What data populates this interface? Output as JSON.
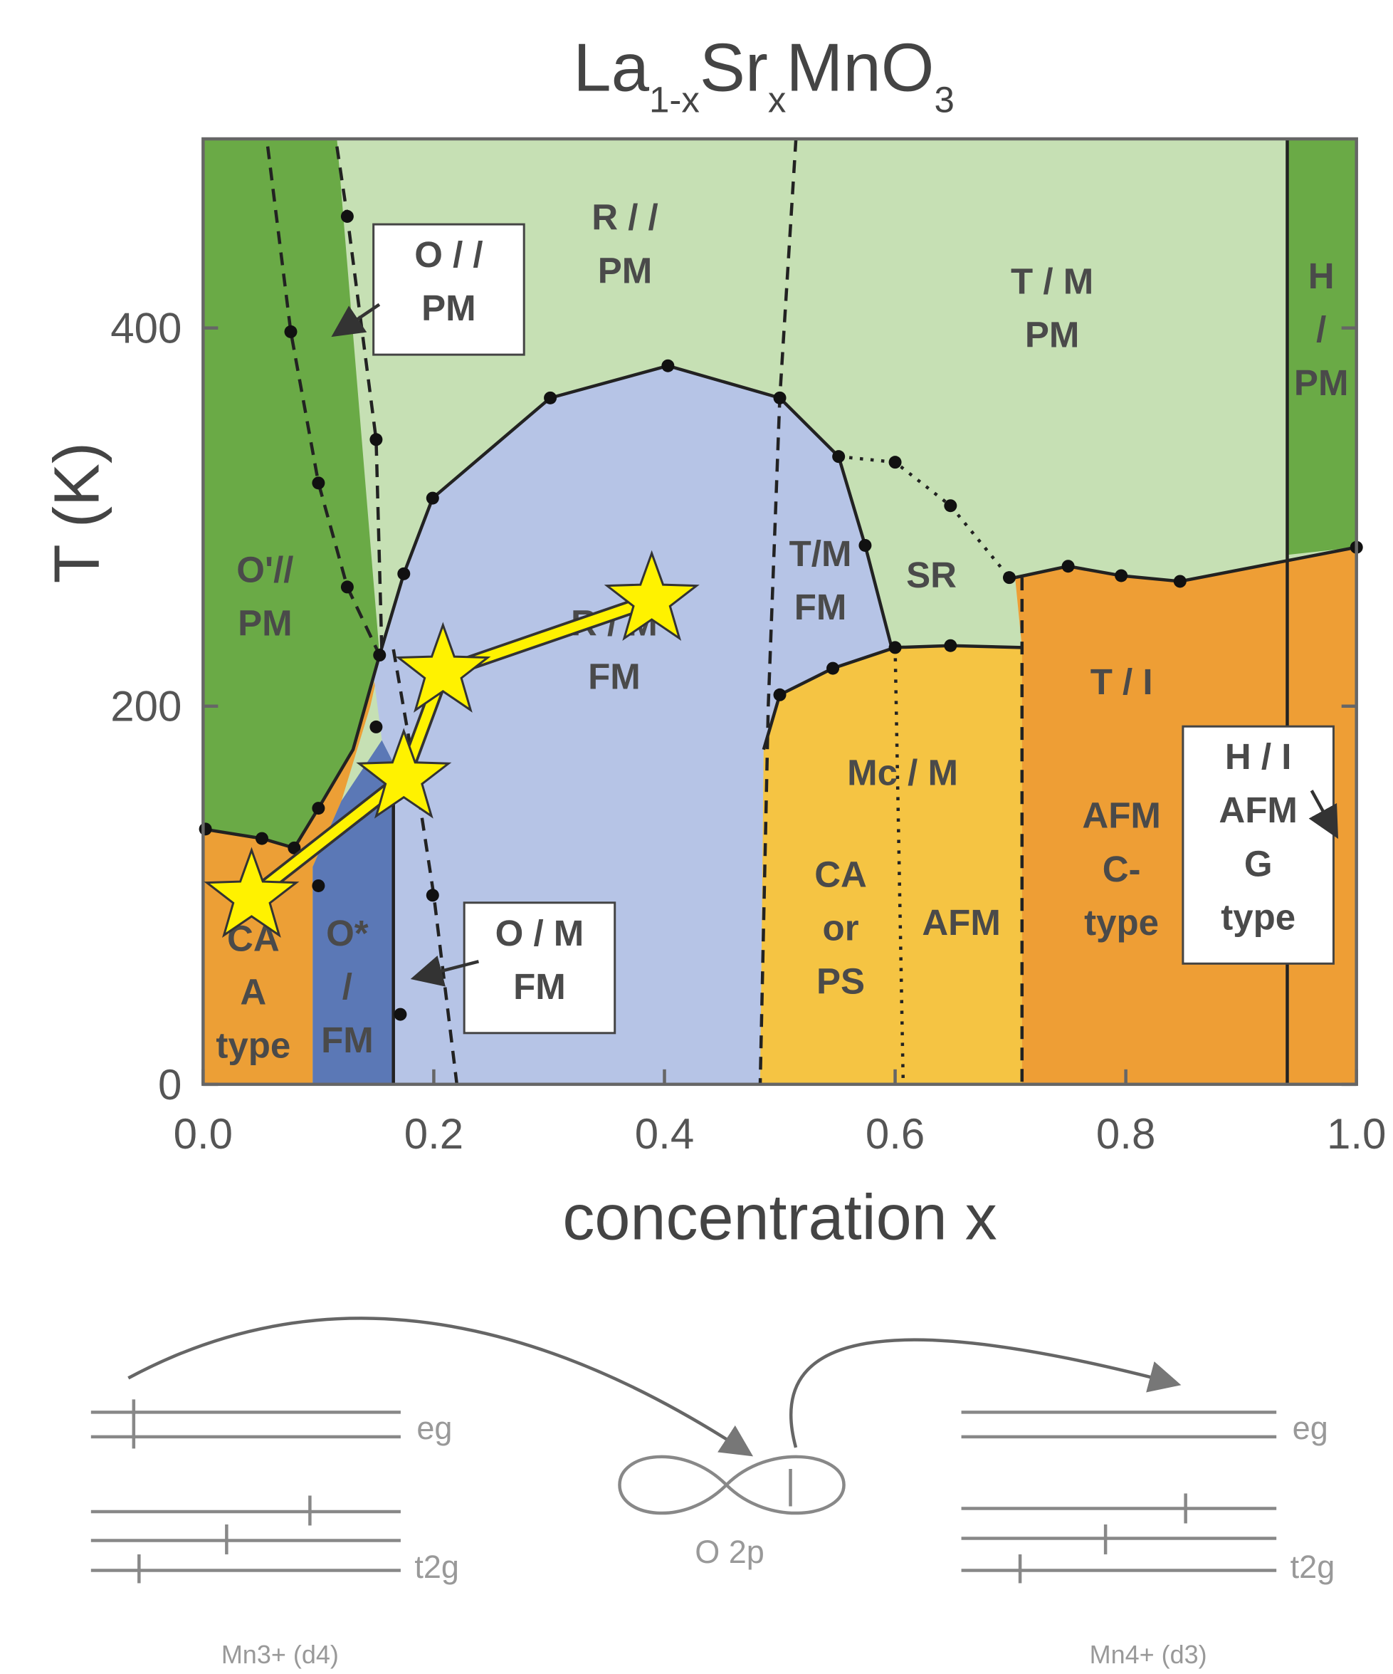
{
  "chart_data": {
    "type": "phase",
    "title": [
      "La",
      "1-x",
      "Sr",
      "x",
      "MnO",
      "3"
    ],
    "xlabel": "concentration x",
    "ylabel": "T (K)",
    "xlim": [
      0,
      1
    ],
    "ylim": [
      0,
      500
    ],
    "xticks": [
      {
        "value": 0,
        "label": "0.0"
      },
      0.2,
      0.4,
      0.6,
      0.8,
      {
        "value": 1,
        "label": "1.0"
      }
    ],
    "yticks": [
      0,
      200,
      400
    ],
    "background": "#c6e0b4",
    "regions": [
      {
        "color": "#6aaa46",
        "x": [
          0,
          0.116,
          0.153,
          0.13,
          0.1,
          0.079,
          0.051,
          0
        ],
        "values": [
          500,
          500,
          227,
          177,
          146,
          125,
          130,
          135
        ]
      },
      {
        "color": "#ec9f36",
        "x": [
          0,
          0.095,
          0.095,
          0.12,
          0.145,
          0.153,
          0.13,
          0.1,
          0.079,
          0.051,
          0
        ],
        "values": [
          0,
          0,
          115,
          150,
          200,
          222,
          177,
          146,
          125,
          130,
          135
        ]
      },
      {
        "color": "#5b78b6",
        "x": [
          0.095,
          0.165,
          0.165,
          0.155,
          0.12,
          0.095
        ],
        "values": [
          0,
          0,
          170,
          182,
          150,
          115
        ]
      },
      {
        "color": "#b6c4e6",
        "x": [
          0.165,
          0.483,
          0.486,
          0.5,
          0.546,
          0.6,
          0.597,
          0.574,
          0.551,
          0.5,
          0.403,
          0.301,
          0.199,
          0.174,
          0.153,
          0.148,
          0.155,
          0.165
        ],
        "values": [
          0,
          0,
          177,
          206,
          220,
          231,
          231,
          285,
          332,
          363,
          380,
          363,
          310,
          270,
          227,
          215,
          182,
          170
        ]
      },
      {
        "color": "#f5c443",
        "x": [
          0.483,
          0.71,
          0.71,
          0.648,
          0.6,
          0.546,
          0.5,
          0.486
        ],
        "values": [
          0,
          0,
          231,
          232,
          231,
          220,
          206,
          177
        ]
      },
      {
        "color": "#ee9e35",
        "x": [
          0.71,
          1,
          1,
          0.847,
          0.796,
          0.75,
          0.704,
          0.71
        ],
        "values": [
          0,
          0,
          284,
          266,
          269,
          274,
          268,
          231
        ]
      },
      {
        "color": "#6aaa46",
        "x": [
          0.94,
          1,
          1,
          0.94
        ],
        "values": [
          500,
          500,
          284,
          280
        ]
      }
    ],
    "boundaries": [
      {
        "style": "dashed",
        "x": [
          0.056,
          0.076,
          0.1,
          0.125,
          0.153
        ],
        "values": [
          496,
          398,
          318,
          263,
          227
        ]
      },
      {
        "style": "dashed",
        "x": [
          0.116,
          0.125,
          0.15,
          0.155
        ],
        "values": [
          496,
          459,
          341,
          228
        ]
      },
      {
        "style": "dashed",
        "x": [
          0.165,
          0.185,
          0.2,
          0.22
        ],
        "values": [
          230,
          160,
          100,
          0
        ]
      },
      {
        "style": "dashed",
        "x": [
          0.514,
          0.5,
          0.49,
          0.483
        ],
        "values": [
          500,
          363,
          200,
          0
        ]
      },
      {
        "style": "dotted",
        "x": [
          0.551,
          0.6,
          0.648,
          0.699
        ],
        "values": [
          332,
          329,
          306,
          268
        ]
      },
      {
        "style": "dashed",
        "x": [
          0.71,
          0.71
        ],
        "values": [
          268,
          0
        ]
      },
      {
        "style": "dotted",
        "x": [
          0.6,
          0.607
        ],
        "values": [
          231,
          0
        ]
      },
      {
        "style": "solid",
        "x": [
          0.94,
          0.94
        ],
        "values": [
          500,
          0
        ]
      },
      {
        "style": "solid",
        "x": [
          0,
          0.051,
          0.079,
          0.1,
          0.13,
          0.153
        ],
        "values": [
          135,
          130,
          125,
          146,
          177,
          227
        ]
      },
      {
        "style": "solid",
        "x": [
          0.153,
          0.174,
          0.199,
          0.301,
          0.403,
          0.5,
          0.551,
          0.574,
          0.597
        ],
        "values": [
          227,
          270,
          310,
          363,
          380,
          363,
          332,
          285,
          231
        ]
      },
      {
        "style": "solid",
        "x": [
          0.486,
          0.5,
          0.546,
          0.6,
          0.648,
          0.71
        ],
        "values": [
          177,
          206,
          220,
          231,
          232,
          231
        ]
      },
      {
        "style": "solid",
        "x": [
          0.704,
          0.75,
          0.796,
          0.847,
          1
        ],
        "values": [
          268,
          274,
          269,
          266,
          284
        ]
      },
      {
        "style": "solid",
        "x": [
          0.165,
          0.165
        ],
        "values": [
          170,
          0
        ]
      }
    ],
    "points": {
      "color": "#111",
      "x": [
        0.002,
        0.051,
        0.079,
        0.1,
        0.1,
        0.076,
        0.1,
        0.125,
        0.153,
        0.15,
        0.171,
        0.125,
        0.15,
        0.174,
        0.199,
        0.301,
        0.403,
        0.5,
        0.551,
        0.574,
        0.6,
        0.648,
        0.699,
        0.5,
        0.546,
        0.6,
        0.648,
        0.75,
        0.796,
        0.847,
        1,
        0.199
      ],
      "values": [
        135,
        130,
        125,
        146,
        105,
        398,
        318,
        263,
        227,
        189,
        37,
        459,
        341,
        270,
        310,
        363,
        380,
        363,
        332,
        285,
        329,
        306,
        268,
        206,
        220,
        231,
        232,
        274,
        269,
        266,
        284,
        100
      ]
    },
    "path": {
      "color": "#fff200",
      "x": [
        0.042,
        0.174,
        0.208,
        0.389
      ],
      "values": [
        99,
        162,
        218,
        256
      ]
    },
    "labels": [
      {
        "lines": [
          "O'//",
          "PM"
        ]
      },
      {
        "lines": [
          "O / /",
          "PM"
        ],
        "boxed": true
      },
      {
        "lines": [
          "R / /",
          "PM"
        ]
      },
      {
        "lines": [
          "T / M",
          "PM"
        ]
      },
      {
        "lines": [
          "H",
          "/",
          "PM"
        ]
      },
      {
        "lines": [
          "T/M",
          "FM"
        ]
      },
      {
        "lines": [
          "SR"
        ]
      },
      {
        "lines": [
          "R / M",
          "FM"
        ]
      },
      {
        "lines": [
          "Mc / M"
        ]
      },
      {
        "lines": [
          "CA",
          "or",
          "PS"
        ]
      },
      {
        "lines": [
          "AFM"
        ]
      },
      {
        "lines": [
          "T / I"
        ]
      },
      {
        "lines": [
          "AFM",
          "C-",
          "type"
        ]
      },
      {
        "lines": [
          "H / I",
          "AFM",
          "G",
          "type"
        ],
        "boxed": true
      },
      {
        "lines": [
          "CA",
          "A",
          "type"
        ]
      },
      {
        "lines": [
          "O*",
          "/",
          "FM"
        ]
      },
      {
        "lines": [
          "O / M",
          "FM"
        ],
        "boxed": true
      }
    ]
  },
  "diagram": {
    "left_eg": "eg",
    "left_t2g": "t2g",
    "center": "O 2p",
    "right_eg": "eg",
    "right_t2g": "t2g",
    "left_ion": "Mn3+ (d4)",
    "right_ion": "Mn4+ (d3)"
  }
}
